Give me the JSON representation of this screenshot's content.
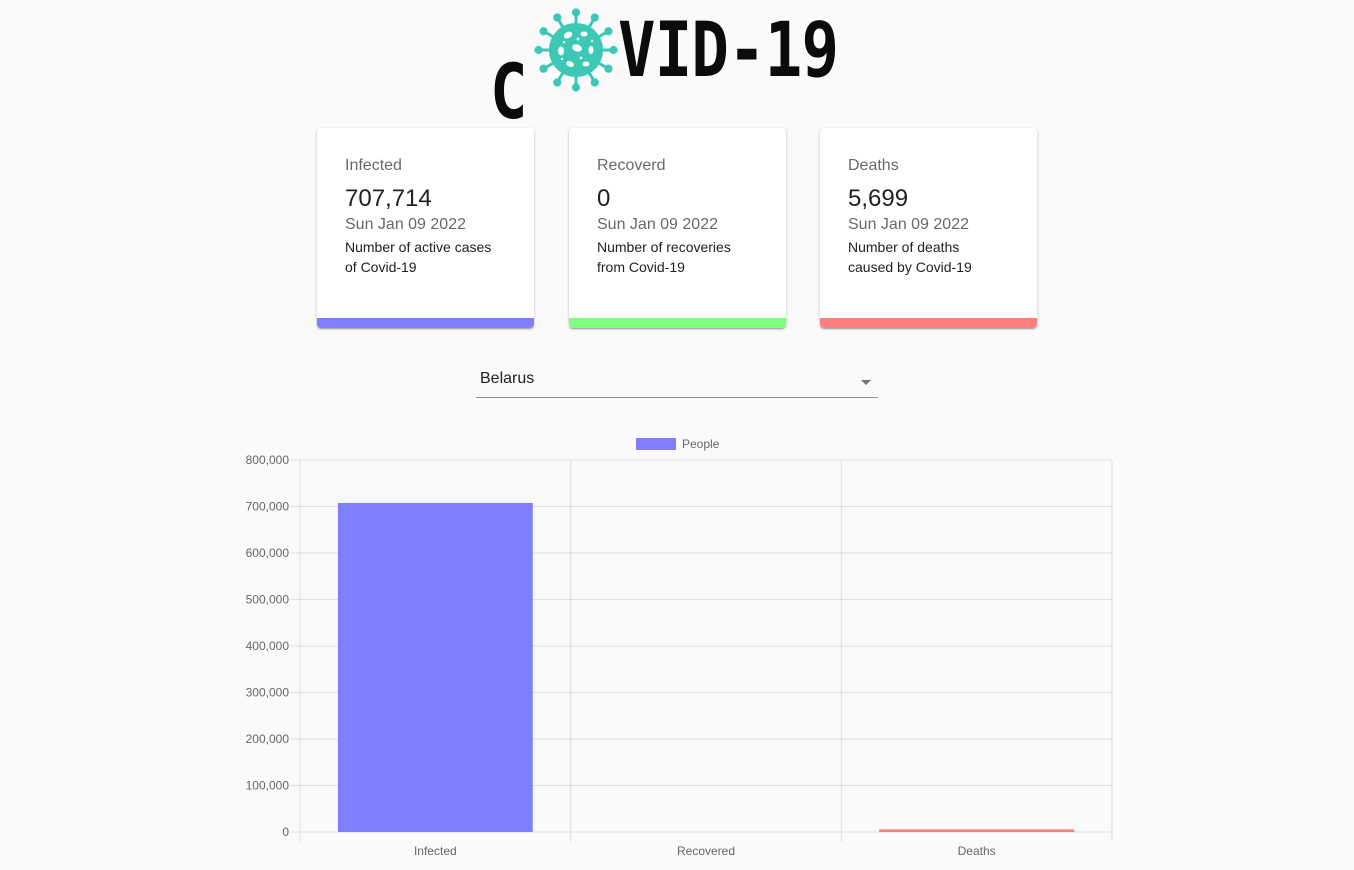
{
  "header": {
    "logo_text_left": "C",
    "logo_text_right": "VID-19",
    "logo_icon": "virus-icon"
  },
  "colors": {
    "infected": "#7f7fff",
    "recovered": "#7fff7f",
    "deaths": "#ff7f7f",
    "virus": "#3cc8b4"
  },
  "cards": [
    {
      "title": "Infected",
      "value": "707,714",
      "date": "Sun Jan 09 2022",
      "description": "Number of active cases of Covid-19"
    },
    {
      "title": "Recoverd",
      "value": "0",
      "date": "Sun Jan 09 2022",
      "description": "Number of recoveries from Covid-19"
    },
    {
      "title": "Deaths",
      "value": "5,699",
      "date": "Sun Jan 09 2022",
      "description": "Number of deaths caused by Covid-19"
    }
  ],
  "country_select": {
    "value": "Belarus",
    "icon": "caret-down-icon"
  },
  "chart_data": {
    "type": "bar",
    "categories": [
      "Infected",
      "Recovered",
      "Deaths"
    ],
    "series": [
      {
        "name": "People",
        "values": [
          707714,
          0,
          5699
        ]
      }
    ],
    "bar_colors": [
      "#7f7fff",
      "#7fff7f",
      "#ff7f7f"
    ],
    "ylim": [
      0,
      800000
    ],
    "yticks": [
      "0",
      "100,000",
      "200,000",
      "300,000",
      "400,000",
      "500,000",
      "600,000",
      "700,000",
      "800,000"
    ],
    "legend_position": "top-center",
    "grid": true
  }
}
